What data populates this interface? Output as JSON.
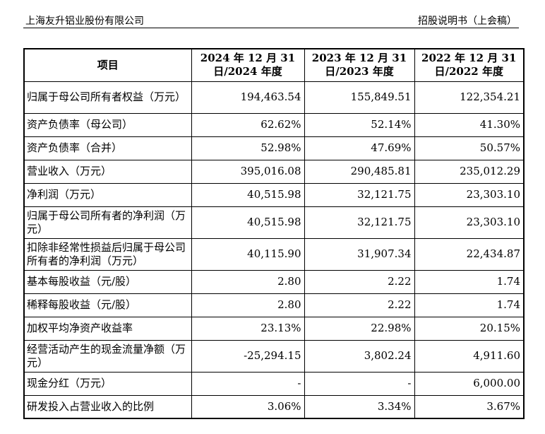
{
  "header": {
    "company": "上海友升铝业股份有限公司",
    "doc_type": "招股说明书（上会稿）"
  },
  "table": {
    "columns": [
      "项目",
      "2024 年 12 月 31 日/2024 年度",
      "2023 年 12 月 31 日/2023 年度",
      "2022 年 12 月 31 日/2022 年度"
    ],
    "rows": [
      {
        "label": "归属于母公司所有者权益（万元）",
        "v": [
          "194,463.54",
          "155,849.51",
          "122,354.21"
        ]
      },
      {
        "label": "资产负债率（母公司）",
        "v": [
          "62.62%",
          "52.14%",
          "41.30%"
        ]
      },
      {
        "label": "资产负债率（合并）",
        "v": [
          "52.98%",
          "47.69%",
          "50.57%"
        ]
      },
      {
        "label": "营业收入（万元）",
        "v": [
          "395,016.08",
          "290,485.81",
          "235,012.29"
        ]
      },
      {
        "label": "净利润（万元）",
        "v": [
          "40,515.98",
          "32,121.75",
          "23,303.10"
        ]
      },
      {
        "label": "归属于母公司所有者的净利润（万元）",
        "v": [
          "40,515.98",
          "32,121.75",
          "23,303.10"
        ]
      },
      {
        "label": "扣除非经常性损益后归属于母公司所有者的净利润（万元）",
        "v": [
          "40,115.90",
          "31,907.34",
          "22,434.87"
        ]
      },
      {
        "label": "基本每股收益（元/股）",
        "v": [
          "2.80",
          "2.22",
          "1.74"
        ]
      },
      {
        "label": "稀释每股收益（元/股）",
        "v": [
          "2.80",
          "2.22",
          "1.74"
        ]
      },
      {
        "label": "加权平均净资产收益率",
        "v": [
          "23.13%",
          "22.98%",
          "20.15%"
        ]
      },
      {
        "label": "经营活动产生的现金流量净额（万元）",
        "v": [
          "-25,294.15",
          "3,802.24",
          "4,911.60"
        ]
      },
      {
        "label": "现金分红（万元）",
        "v": [
          "-",
          "-",
          "6,000.00"
        ]
      },
      {
        "label": "研发投入占营业收入的比例",
        "v": [
          "3.06%",
          "3.34%",
          "3.67%"
        ]
      }
    ]
  }
}
